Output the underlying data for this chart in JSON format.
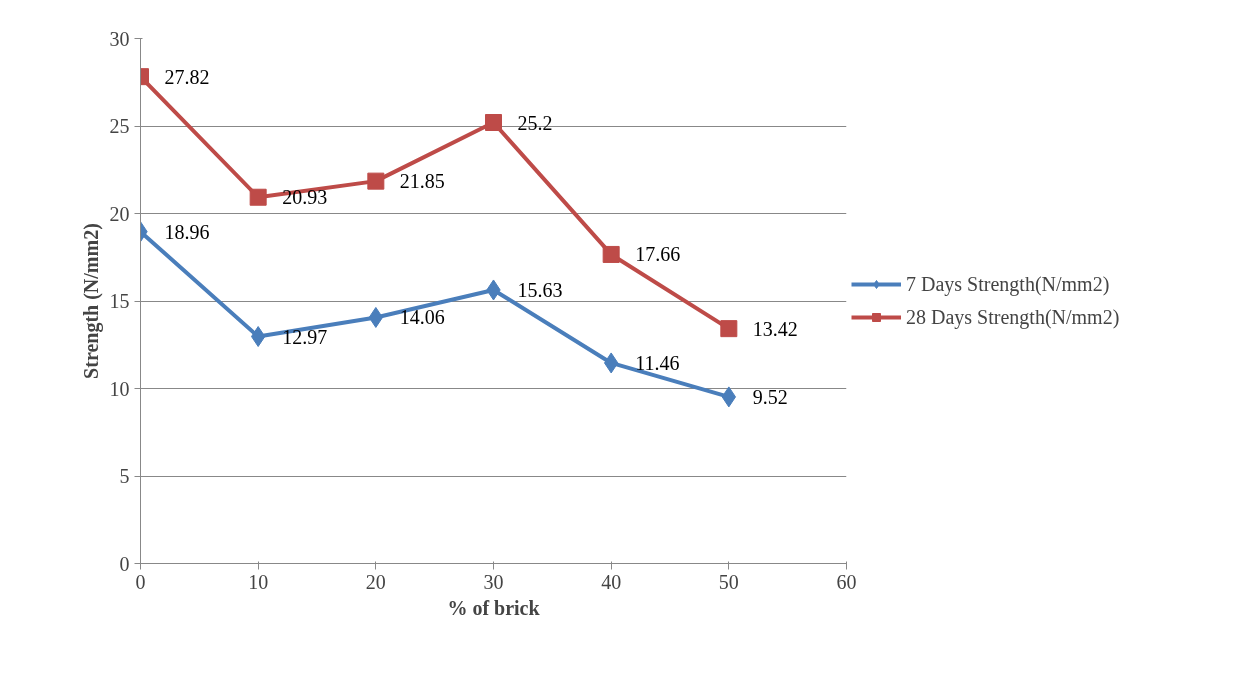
{
  "chart_data": {
    "type": "line",
    "xlabel": "% of brick",
    "ylabel": "Strength (N/mm2)",
    "x": [
      0,
      10,
      20,
      30,
      40,
      50
    ],
    "series": [
      {
        "name": "7 Days Strength(N/mm2)",
        "color": "#4a7ebb",
        "marker": "diamond",
        "values": [
          18.96,
          12.97,
          14.06,
          15.63,
          11.46,
          9.52
        ]
      },
      {
        "name": "28 Days Strength(N/mm2)",
        "color": "#be4b48",
        "marker": "square",
        "values": [
          27.82,
          20.93,
          21.85,
          25.2,
          17.66,
          13.42
        ]
      }
    ],
    "xlim": [
      0,
      60
    ],
    "xticks": [
      0,
      10,
      20,
      30,
      40,
      50,
      60
    ],
    "ylim": [
      0,
      30
    ],
    "yticks": [
      0,
      5,
      10,
      15,
      20,
      25,
      30
    ],
    "grid": "y",
    "legend": "right",
    "data_labels": true,
    "line_style": "solid"
  }
}
